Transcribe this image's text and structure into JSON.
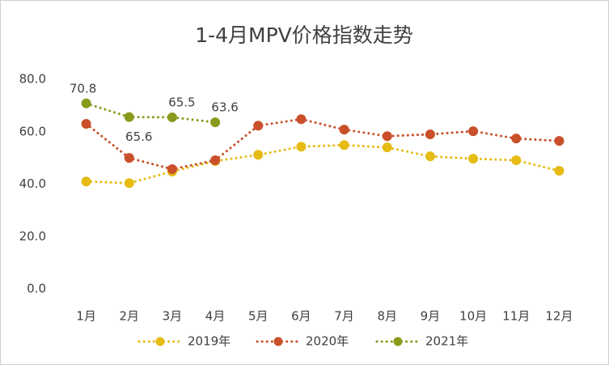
{
  "chart_data": {
    "type": "line",
    "title": "1-4月MPV价格指数走势",
    "categories": [
      "1月",
      "2月",
      "3月",
      "4月",
      "5月",
      "6月",
      "7月",
      "8月",
      "9月",
      "10月",
      "11月",
      "12月"
    ],
    "series": [
      {
        "name": "2019年",
        "color": "#e6bb14",
        "values": [
          41.0,
          40.4,
          44.8,
          48.8,
          51.2,
          54.3,
          54.9,
          54.0,
          50.6,
          49.7,
          49.1,
          45.1
        ]
      },
      {
        "name": "2020年",
        "color": "#c9502a",
        "values": [
          63.0,
          50.0,
          45.7,
          49.1,
          62.3,
          64.8,
          60.8,
          58.3,
          59.0,
          60.2,
          57.4,
          56.5
        ]
      },
      {
        "name": "2021年",
        "color": "#8a9a1c",
        "values": [
          70.8,
          65.6,
          65.5,
          63.6,
          null,
          null,
          null,
          null,
          null,
          null,
          null,
          null
        ],
        "data_labels": true
      }
    ],
    "ylim": [
      0,
      80
    ],
    "yticks": [
      {
        "value": 0,
        "label": "0.0"
      },
      {
        "value": 20,
        "label": "20.0"
      },
      {
        "value": 40,
        "label": "40.0"
      },
      {
        "value": 60,
        "label": "60.0"
      },
      {
        "value": 80,
        "label": "80.0"
      }
    ],
    "grid": false,
    "legend": "bottom"
  }
}
